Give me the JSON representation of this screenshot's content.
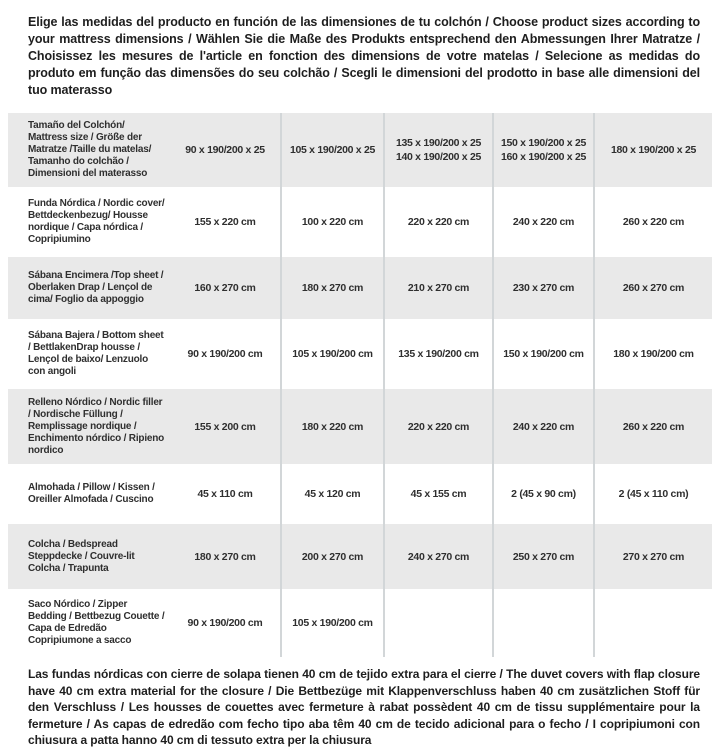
{
  "intro": {
    "text": "Elige las medidas del producto en función de las dimensiones de tu colchón / Choose product sizes according to your mattress dimensions / Wählen Sie die Maße des Produkts entsprechend den Abmessungen Ihrer Matratze / Choisissez les mesures de l'article en fonction des dimensions de votre matelas / Selecione as medidas do produto em função das dimensões do seu colchão / Scegli le dimensioni del prodotto in base alle dimensioni del tuo materasso"
  },
  "table": {
    "rows": [
      {
        "label": "Tamaño del Colchón/ Mattress size / Größe der Matratze /Taille du matelas/ Tamanho do colchão / Dimensioni del materasso",
        "cells": [
          [
            "90 x 190/200 x 25"
          ],
          [
            "105 x 190/200 x 25"
          ],
          [
            "135 x 190/200 x 25",
            "140 x 190/200 x 25"
          ],
          [
            "150 x 190/200 x 25",
            "160 x 190/200 x 25"
          ],
          [
            "180 x 190/200 x 25"
          ]
        ]
      },
      {
        "label": "Funda Nórdica / Nordic cover/ Bettdeckenbezug/ Housse nordique / Capa nórdica / Copripiumino",
        "cells": [
          [
            "155 x 220 cm"
          ],
          [
            "100 x 220 cm"
          ],
          [
            "220 x 220 cm"
          ],
          [
            "240 x 220 cm"
          ],
          [
            "260 x 220 cm"
          ]
        ]
      },
      {
        "label": "Sábana Encimera /Top sheet / Oberlaken Drap / Lençol de cima/ Foglio da appoggio",
        "cells": [
          [
            "160 x 270 cm"
          ],
          [
            "180 x 270 cm"
          ],
          [
            "210 x 270 cm"
          ],
          [
            "230 x 270 cm"
          ],
          [
            "260 x 270 cm"
          ]
        ]
      },
      {
        "label": "Sábana Bajera / Bottom sheet / BettlakenDrap housse / Lençol de baixo/ Lenzuolo con angoli",
        "cells": [
          [
            "90 x 190/200 cm"
          ],
          [
            "105 x 190/200 cm"
          ],
          [
            "135 x 190/200 cm"
          ],
          [
            "150 x 190/200 cm"
          ],
          [
            "180 x 190/200 cm"
          ]
        ]
      },
      {
        "label": "Relleno Nórdico / Nordic filler / Nordische Füllung / Remplissage nordique / Enchimento nórdico / Ripieno nordico",
        "cells": [
          [
            "155 x 200 cm"
          ],
          [
            "180 x 220 cm"
          ],
          [
            "220 x 220 cm"
          ],
          [
            "240 x 220 cm"
          ],
          [
            "260 x 220 cm"
          ]
        ]
      },
      {
        "label": "Almohada / Pillow / Kissen / Oreiller Almofada / Cuscino",
        "cells": [
          [
            "45 x 110 cm"
          ],
          [
            "45 x 120 cm"
          ],
          [
            "45 x 155 cm"
          ],
          [
            "2 (45 x 90 cm)"
          ],
          [
            "2 (45 x 110 cm)"
          ]
        ]
      },
      {
        "label": "Colcha / Bedspread Steppdecke / Couvre-lit Colcha / Trapunta",
        "cells": [
          [
            "180 x 270 cm"
          ],
          [
            "200 x 270 cm"
          ],
          [
            "240 x 270 cm"
          ],
          [
            "250 x 270 cm"
          ],
          [
            "270 x 270 cm"
          ]
        ]
      },
      {
        "label": "Saco Nórdico / Zipper Bedding / Bettbezug Couette / Capa de Edredão Copripiumone a sacco",
        "cells": [
          [
            "90 x 190/200 cm"
          ],
          [
            "105 x 190/200 cm"
          ],
          [],
          [],
          []
        ]
      }
    ]
  },
  "footnote": {
    "text": "Las fundas nórdicas con cierre de solapa tienen 40 cm de tejido extra para el cierre / The duvet covers with flap closure have 40 cm extra material for the closure / Die Bettbezüge mit Klappenverschluss haben 40 cm zusätzlichen Stoff für den Verschluss / Les housses de couettes avec fermeture à rabat possèdent 40 cm de tissu supplémentaire pour la fermeture / As capas de edredão com fecho tipo aba têm 40 cm de tecido adicional para o fecho / I copripiumoni con chiusura a patta hanno 40 cm di tessuto extra per la chiusura"
  },
  "colors": {
    "row_shade": "#e9e9e9",
    "separator": "#d2d6d8",
    "text": "#2d2d2d"
  }
}
